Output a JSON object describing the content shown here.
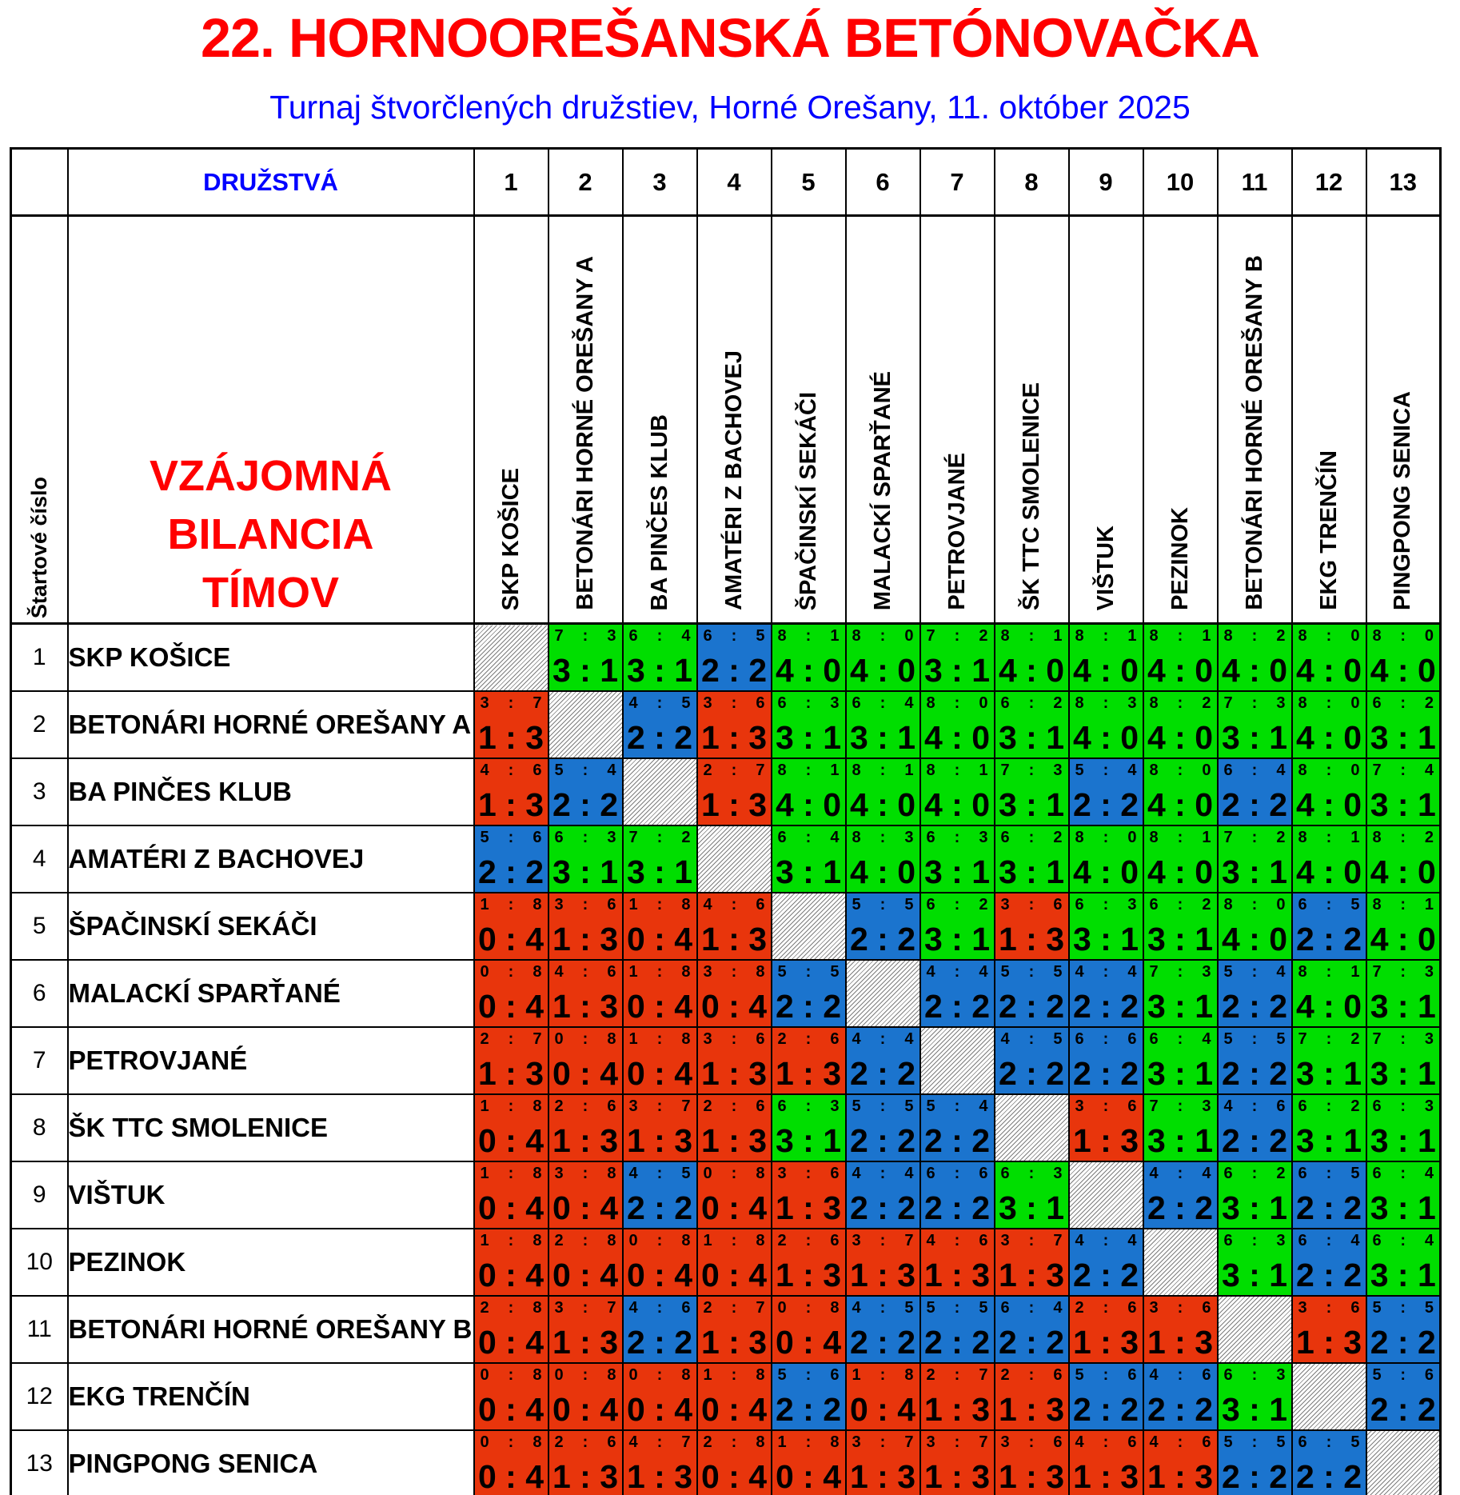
{
  "title": "22. HORNOOREŠANSKÁ BETÓNOVAČKA",
  "subtitle": "Turnaj štvorčlených družstiev, Horné Orešany, 11. október 2025",
  "header": {
    "druzstva": "DRUŽSTVÁ",
    "startove_cislo": "Štartové číslo",
    "matrix_title_lines": [
      "VZÁJOMNÁ",
      "BILANCIA",
      "TÍMOV"
    ],
    "col_numbers": [
      "1",
      "2",
      "3",
      "4",
      "5",
      "6",
      "7",
      "8",
      "9",
      "10",
      "11",
      "12",
      "13"
    ]
  },
  "teams": [
    "SKP KOŠICE",
    "BETONÁRI HORNÉ OREŠANY A",
    "BA PINČES KLUB",
    "AMATÉRI Z BACHOVEJ",
    "ŠPAČINSKÍ SEKÁČI",
    "MALACKÍ SPARŤANÉ",
    "PETROVJANÉ",
    "ŠK TTC SMOLENICE",
    "VIŠTUK",
    "PEZINOK",
    "BETONÁRI HORNÉ OREŠANY B",
    "EKG TRENČÍN",
    "PINGPONG SENICA"
  ],
  "legend": {
    "win_color": "#00DE00",
    "draw_color": "#1B74CE",
    "loss_color": "#E8350C",
    "title_color": "#FF0000",
    "subtitle_color": "#0000FF",
    "matrix_title_color": "#FF0000"
  },
  "results": [
    [
      null,
      {
        "s": "7 : 3",
        "b": "3 : 1",
        "r": "W"
      },
      {
        "s": "6 : 4",
        "b": "3 : 1",
        "r": "W"
      },
      {
        "s": "6 : 5",
        "b": "2 : 2",
        "r": "D"
      },
      {
        "s": "8 : 1",
        "b": "4 : 0",
        "r": "W"
      },
      {
        "s": "8 : 0",
        "b": "4 : 0",
        "r": "W"
      },
      {
        "s": "7 : 2",
        "b": "3 : 1",
        "r": "W"
      },
      {
        "s": "8 : 1",
        "b": "4 : 0",
        "r": "W"
      },
      {
        "s": "8 : 1",
        "b": "4 : 0",
        "r": "W"
      },
      {
        "s": "8 : 1",
        "b": "4 : 0",
        "r": "W"
      },
      {
        "s": "8 : 2",
        "b": "4 : 0",
        "r": "W"
      },
      {
        "s": "8 : 0",
        "b": "4 : 0",
        "r": "W"
      },
      {
        "s": "8 : 0",
        "b": "4 : 0",
        "r": "W"
      }
    ],
    [
      {
        "s": "3 : 7",
        "b": "1 : 3",
        "r": "L"
      },
      null,
      {
        "s": "4 : 5",
        "b": "2 : 2",
        "r": "D"
      },
      {
        "s": "3 : 6",
        "b": "1 : 3",
        "r": "L"
      },
      {
        "s": "6 : 3",
        "b": "3 : 1",
        "r": "W"
      },
      {
        "s": "6 : 4",
        "b": "3 : 1",
        "r": "W"
      },
      {
        "s": "8 : 0",
        "b": "4 : 0",
        "r": "W"
      },
      {
        "s": "6 : 2",
        "b": "3 : 1",
        "r": "W"
      },
      {
        "s": "8 : 3",
        "b": "4 : 0",
        "r": "W"
      },
      {
        "s": "8 : 2",
        "b": "4 : 0",
        "r": "W"
      },
      {
        "s": "7 : 3",
        "b": "3 : 1",
        "r": "W"
      },
      {
        "s": "8 : 0",
        "b": "4 : 0",
        "r": "W"
      },
      {
        "s": "6 : 2",
        "b": "3 : 1",
        "r": "W"
      }
    ],
    [
      {
        "s": "4 : 6",
        "b": "1 : 3",
        "r": "L"
      },
      {
        "s": "5 : 4",
        "b": "2 : 2",
        "r": "D"
      },
      null,
      {
        "s": "2 : 7",
        "b": "1 : 3",
        "r": "L"
      },
      {
        "s": "8 : 1",
        "b": "4 : 0",
        "r": "W"
      },
      {
        "s": "8 : 1",
        "b": "4 : 0",
        "r": "W"
      },
      {
        "s": "8 : 1",
        "b": "4 : 0",
        "r": "W"
      },
      {
        "s": "7 : 3",
        "b": "3 : 1",
        "r": "W"
      },
      {
        "s": "5 : 4",
        "b": "2 : 2",
        "r": "D"
      },
      {
        "s": "8 : 0",
        "b": "4 : 0",
        "r": "W"
      },
      {
        "s": "6 : 4",
        "b": "2 : 2",
        "r": "D"
      },
      {
        "s": "8 : 0",
        "b": "4 : 0",
        "r": "W"
      },
      {
        "s": "7 : 4",
        "b": "3 : 1",
        "r": "W"
      }
    ],
    [
      {
        "s": "5 : 6",
        "b": "2 : 2",
        "r": "D"
      },
      {
        "s": "6 : 3",
        "b": "3 : 1",
        "r": "W"
      },
      {
        "s": "7 : 2",
        "b": "3 : 1",
        "r": "W"
      },
      null,
      {
        "s": "6 : 4",
        "b": "3 : 1",
        "r": "W"
      },
      {
        "s": "8 : 3",
        "b": "4 : 0",
        "r": "W"
      },
      {
        "s": "6 : 3",
        "b": "3 : 1",
        "r": "W"
      },
      {
        "s": "6 : 2",
        "b": "3 : 1",
        "r": "W"
      },
      {
        "s": "8 : 0",
        "b": "4 : 0",
        "r": "W"
      },
      {
        "s": "8 : 1",
        "b": "4 : 0",
        "r": "W"
      },
      {
        "s": "7 : 2",
        "b": "3 : 1",
        "r": "W"
      },
      {
        "s": "8 : 1",
        "b": "4 : 0",
        "r": "W"
      },
      {
        "s": "8 : 2",
        "b": "4 : 0",
        "r": "W"
      }
    ],
    [
      {
        "s": "1 : 8",
        "b": "0 : 4",
        "r": "L"
      },
      {
        "s": "3 : 6",
        "b": "1 : 3",
        "r": "L"
      },
      {
        "s": "1 : 8",
        "b": "0 : 4",
        "r": "L"
      },
      {
        "s": "4 : 6",
        "b": "1 : 3",
        "r": "L"
      },
      null,
      {
        "s": "5 : 5",
        "b": "2 : 2",
        "r": "D"
      },
      {
        "s": "6 : 2",
        "b": "3 : 1",
        "r": "W"
      },
      {
        "s": "3 : 6",
        "b": "1 : 3",
        "r": "L"
      },
      {
        "s": "6 : 3",
        "b": "3 : 1",
        "r": "W"
      },
      {
        "s": "6 : 2",
        "b": "3 : 1",
        "r": "W"
      },
      {
        "s": "8 : 0",
        "b": "4 : 0",
        "r": "W"
      },
      {
        "s": "6 : 5",
        "b": "2 : 2",
        "r": "D"
      },
      {
        "s": "8 : 1",
        "b": "4 : 0",
        "r": "W"
      }
    ],
    [
      {
        "s": "0 : 8",
        "b": "0 : 4",
        "r": "L"
      },
      {
        "s": "4 : 6",
        "b": "1 : 3",
        "r": "L"
      },
      {
        "s": "1 : 8",
        "b": "0 : 4",
        "r": "L"
      },
      {
        "s": "3 : 8",
        "b": "0 : 4",
        "r": "L"
      },
      {
        "s": "5 : 5",
        "b": "2 : 2",
        "r": "D"
      },
      null,
      {
        "s": "4 : 4",
        "b": "2 : 2",
        "r": "D"
      },
      {
        "s": "5 : 5",
        "b": "2 : 2",
        "r": "D"
      },
      {
        "s": "4 : 4",
        "b": "2 : 2",
        "r": "D"
      },
      {
        "s": "7 : 3",
        "b": "3 : 1",
        "r": "W"
      },
      {
        "s": "5 : 4",
        "b": "2 : 2",
        "r": "D"
      },
      {
        "s": "8 : 1",
        "b": "4 : 0",
        "r": "W"
      },
      {
        "s": "7 : 3",
        "b": "3 : 1",
        "r": "W"
      }
    ],
    [
      {
        "s": "2 : 7",
        "b": "1 : 3",
        "r": "L"
      },
      {
        "s": "0 : 8",
        "b": "0 : 4",
        "r": "L"
      },
      {
        "s": "1 : 8",
        "b": "0 : 4",
        "r": "L"
      },
      {
        "s": "3 : 6",
        "b": "1 : 3",
        "r": "L"
      },
      {
        "s": "2 : 6",
        "b": "1 : 3",
        "r": "L"
      },
      {
        "s": "4 : 4",
        "b": "2 : 2",
        "r": "D"
      },
      null,
      {
        "s": "4 : 5",
        "b": "2 : 2",
        "r": "D"
      },
      {
        "s": "6 : 6",
        "b": "2 : 2",
        "r": "D"
      },
      {
        "s": "6 : 4",
        "b": "3 : 1",
        "r": "W"
      },
      {
        "s": "5 : 5",
        "b": "2 : 2",
        "r": "D"
      },
      {
        "s": "7 : 2",
        "b": "3 : 1",
        "r": "W"
      },
      {
        "s": "7 : 3",
        "b": "3 : 1",
        "r": "W"
      }
    ],
    [
      {
        "s": "1 : 8",
        "b": "0 : 4",
        "r": "L"
      },
      {
        "s": "2 : 6",
        "b": "1 : 3",
        "r": "L"
      },
      {
        "s": "3 : 7",
        "b": "1 : 3",
        "r": "L"
      },
      {
        "s": "2 : 6",
        "b": "1 : 3",
        "r": "L"
      },
      {
        "s": "6 : 3",
        "b": "3 : 1",
        "r": "W"
      },
      {
        "s": "5 : 5",
        "b": "2 : 2",
        "r": "D"
      },
      {
        "s": "5 : 4",
        "b": "2 : 2",
        "r": "D"
      },
      null,
      {
        "s": "3 : 6",
        "b": "1 : 3",
        "r": "L"
      },
      {
        "s": "7 : 3",
        "b": "3 : 1",
        "r": "W"
      },
      {
        "s": "4 : 6",
        "b": "2 : 2",
        "r": "D"
      },
      {
        "s": "6 : 2",
        "b": "3 : 1",
        "r": "W"
      },
      {
        "s": "6 : 3",
        "b": "3 : 1",
        "r": "W"
      }
    ],
    [
      {
        "s": "1 : 8",
        "b": "0 : 4",
        "r": "L"
      },
      {
        "s": "3 : 8",
        "b": "0 : 4",
        "r": "L"
      },
      {
        "s": "4 : 5",
        "b": "2 : 2",
        "r": "D"
      },
      {
        "s": "0 : 8",
        "b": "0 : 4",
        "r": "L"
      },
      {
        "s": "3 : 6",
        "b": "1 : 3",
        "r": "L"
      },
      {
        "s": "4 : 4",
        "b": "2 : 2",
        "r": "D"
      },
      {
        "s": "6 : 6",
        "b": "2 : 2",
        "r": "D"
      },
      {
        "s": "6 : 3",
        "b": "3 : 1",
        "r": "W"
      },
      null,
      {
        "s": "4 : 4",
        "b": "2 : 2",
        "r": "D"
      },
      {
        "s": "6 : 2",
        "b": "3 : 1",
        "r": "W"
      },
      {
        "s": "6 : 5",
        "b": "2 : 2",
        "r": "D"
      },
      {
        "s": "6 : 4",
        "b": "3 : 1",
        "r": "W"
      }
    ],
    [
      {
        "s": "1 : 8",
        "b": "0 : 4",
        "r": "L"
      },
      {
        "s": "2 : 8",
        "b": "0 : 4",
        "r": "L"
      },
      {
        "s": "0 : 8",
        "b": "0 : 4",
        "r": "L"
      },
      {
        "s": "1 : 8",
        "b": "0 : 4",
        "r": "L"
      },
      {
        "s": "2 : 6",
        "b": "1 : 3",
        "r": "L"
      },
      {
        "s": "3 : 7",
        "b": "1 : 3",
        "r": "L"
      },
      {
        "s": "4 : 6",
        "b": "1 : 3",
        "r": "L"
      },
      {
        "s": "3 : 7",
        "b": "1 : 3",
        "r": "L"
      },
      {
        "s": "4 : 4",
        "b": "2 : 2",
        "r": "D"
      },
      null,
      {
        "s": "6 : 3",
        "b": "3 : 1",
        "r": "W"
      },
      {
        "s": "6 : 4",
        "b": "2 : 2",
        "r": "D"
      },
      {
        "s": "6 : 4",
        "b": "3 : 1",
        "r": "W"
      }
    ],
    [
      {
        "s": "2 : 8",
        "b": "0 : 4",
        "r": "L"
      },
      {
        "s": "3 : 7",
        "b": "1 : 3",
        "r": "L"
      },
      {
        "s": "4 : 6",
        "b": "2 : 2",
        "r": "D"
      },
      {
        "s": "2 : 7",
        "b": "1 : 3",
        "r": "L"
      },
      {
        "s": "0 : 8",
        "b": "0 : 4",
        "r": "L"
      },
      {
        "s": "4 : 5",
        "b": "2 : 2",
        "r": "D"
      },
      {
        "s": "5 : 5",
        "b": "2 : 2",
        "r": "D"
      },
      {
        "s": "6 : 4",
        "b": "2 : 2",
        "r": "D"
      },
      {
        "s": "2 : 6",
        "b": "1 : 3",
        "r": "L"
      },
      {
        "s": "3 : 6",
        "b": "1 : 3",
        "r": "L"
      },
      null,
      {
        "s": "3 : 6",
        "b": "1 : 3",
        "r": "L"
      },
      {
        "s": "5 : 5",
        "b": "2 : 2",
        "r": "D"
      }
    ],
    [
      {
        "s": "0 : 8",
        "b": "0 : 4",
        "r": "L"
      },
      {
        "s": "0 : 8",
        "b": "0 : 4",
        "r": "L"
      },
      {
        "s": "0 : 8",
        "b": "0 : 4",
        "r": "L"
      },
      {
        "s": "1 : 8",
        "b": "0 : 4",
        "r": "L"
      },
      {
        "s": "5 : 6",
        "b": "2 : 2",
        "r": "D"
      },
      {
        "s": "1 : 8",
        "b": "0 : 4",
        "r": "L"
      },
      {
        "s": "2 : 7",
        "b": "1 : 3",
        "r": "L"
      },
      {
        "s": "2 : 6",
        "b": "1 : 3",
        "r": "L"
      },
      {
        "s": "5 : 6",
        "b": "2 : 2",
        "r": "D"
      },
      {
        "s": "4 : 6",
        "b": "2 : 2",
        "r": "D"
      },
      {
        "s": "6 : 3",
        "b": "3 : 1",
        "r": "W"
      },
      null,
      {
        "s": "5 : 6",
        "b": "2 : 2",
        "r": "D"
      }
    ],
    [
      {
        "s": "0 : 8",
        "b": "0 : 4",
        "r": "L"
      },
      {
        "s": "2 : 6",
        "b": "1 : 3",
        "r": "L"
      },
      {
        "s": "4 : 7",
        "b": "1 : 3",
        "r": "L"
      },
      {
        "s": "2 : 8",
        "b": "0 : 4",
        "r": "L"
      },
      {
        "s": "1 : 8",
        "b": "0 : 4",
        "r": "L"
      },
      {
        "s": "3 : 7",
        "b": "1 : 3",
        "r": "L"
      },
      {
        "s": "3 : 7",
        "b": "1 : 3",
        "r": "L"
      },
      {
        "s": "3 : 6",
        "b": "1 : 3",
        "r": "L"
      },
      {
        "s": "4 : 6",
        "b": "1 : 3",
        "r": "L"
      },
      {
        "s": "4 : 6",
        "b": "1 : 3",
        "r": "L"
      },
      {
        "s": "5 : 5",
        "b": "2 : 2",
        "r": "D"
      },
      {
        "s": "6 : 5",
        "b": "2 : 2",
        "r": "D"
      },
      null
    ]
  ]
}
